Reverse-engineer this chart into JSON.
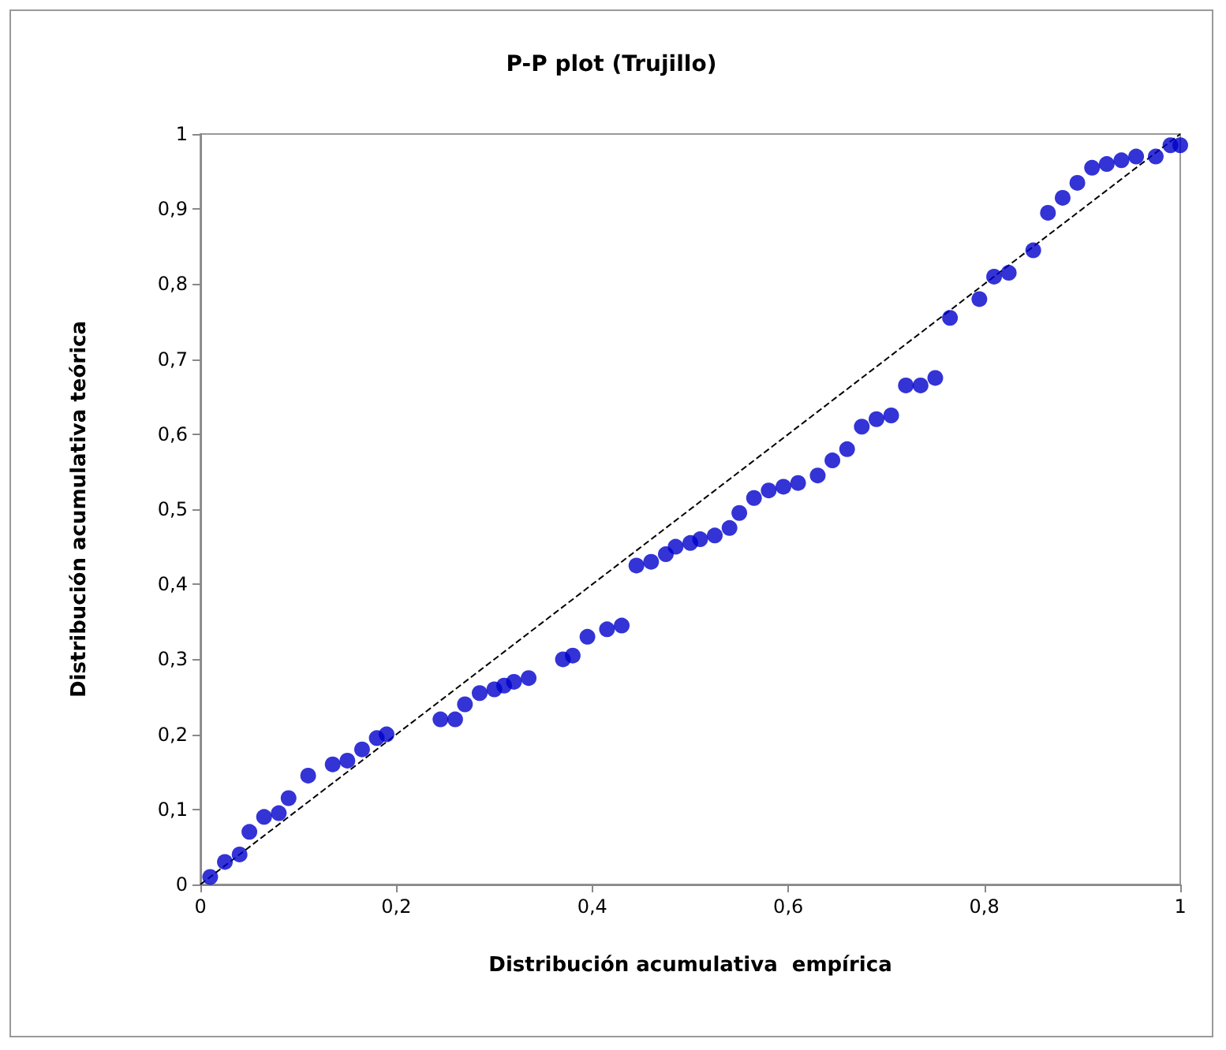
{
  "chart_data": {
    "type": "scatter",
    "title": "P-P plot (Trujillo)",
    "xlabel": "Distribución acumulativa  empírica",
    "ylabel": "Distribución acumulativa teórica",
    "marker": "circle",
    "grid": false,
    "xlim": [
      0,
      1
    ],
    "ylim": [
      0,
      1
    ],
    "xticks": [
      0,
      {
        "value": 0.2,
        "label": "0,2"
      },
      {
        "value": 0.4,
        "label": "0,4"
      },
      {
        "value": 0.6,
        "label": "0,6"
      },
      {
        "value": 0.8,
        "label": "0,8"
      },
      1
    ],
    "yticks": [
      0,
      {
        "value": 0.1,
        "label": "0,1"
      },
      {
        "value": 0.2,
        "label": "0,2"
      },
      {
        "value": 0.3,
        "label": "0,3"
      },
      {
        "value": 0.4,
        "label": "0,4"
      },
      {
        "value": 0.5,
        "label": "0,5"
      },
      {
        "value": 0.6,
        "label": "0,6"
      },
      {
        "value": 0.7,
        "label": "0,7"
      },
      {
        "value": 0.8,
        "label": "0,8"
      },
      {
        "value": 0.9,
        "label": "0,9"
      },
      1
    ],
    "series": [
      {
        "color": "#0000cc",
        "x": [
          0.01,
          0.025,
          0.04,
          0.05,
          0.065,
          0.08,
          0.09,
          0.11,
          0.135,
          0.15,
          0.165,
          0.18,
          0.19,
          0.245,
          0.26,
          0.27,
          0.285,
          0.3,
          0.31,
          0.32,
          0.335,
          0.37,
          0.38,
          0.395,
          0.415,
          0.43,
          0.445,
          0.46,
          0.475,
          0.485,
          0.5,
          0.51,
          0.525,
          0.54,
          0.55,
          0.565,
          0.58,
          0.595,
          0.61,
          0.63,
          0.645,
          0.66,
          0.675,
          0.69,
          0.705,
          0.72,
          0.735,
          0.75,
          0.765,
          0.795,
          0.81,
          0.825,
          0.85,
          0.865,
          0.88,
          0.895,
          0.91,
          0.925,
          0.94,
          0.955,
          0.975,
          0.99,
          1.0
        ],
        "values": [
          0.01,
          0.03,
          0.04,
          0.07,
          0.09,
          0.095,
          0.115,
          0.145,
          0.16,
          0.165,
          0.18,
          0.195,
          0.2,
          0.22,
          0.22,
          0.24,
          0.255,
          0.26,
          0.265,
          0.27,
          0.275,
          0.3,
          0.305,
          0.33,
          0.34,
          0.345,
          0.425,
          0.43,
          0.44,
          0.45,
          0.455,
          0.46,
          0.465,
          0.475,
          0.495,
          0.515,
          0.525,
          0.53,
          0.535,
          0.545,
          0.565,
          0.58,
          0.61,
          0.62,
          0.625,
          0.665,
          0.665,
          0.675,
          0.755,
          0.78,
          0.81,
          0.815,
          0.845,
          0.895,
          0.915,
          0.935,
          0.955,
          0.96,
          0.965,
          0.97,
          0.97,
          0.985,
          0.985
        ]
      },
      {
        "type": "line",
        "color": "#000000",
        "line_style": "dashed",
        "marker": "none",
        "x": [
          0,
          1
        ],
        "values": [
          0,
          1
        ]
      }
    ]
  }
}
